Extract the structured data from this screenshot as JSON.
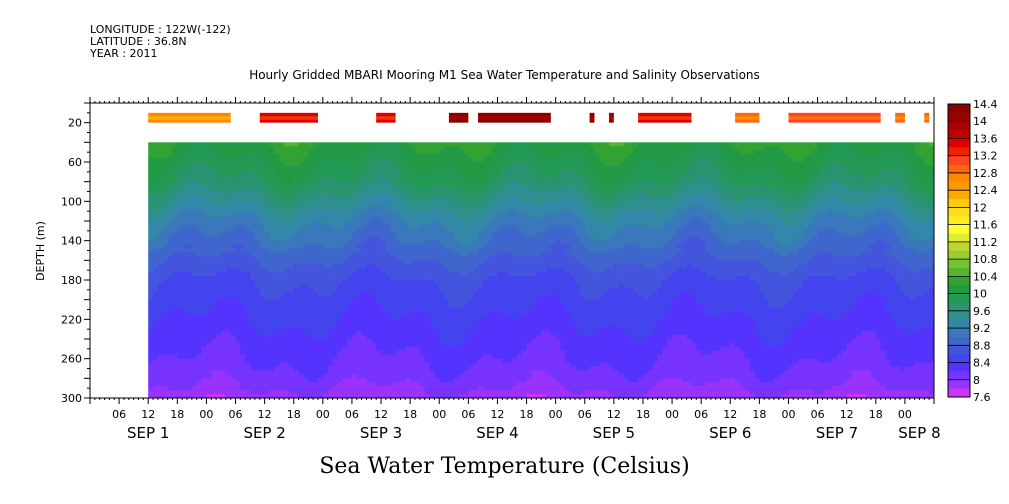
{
  "header": {
    "longitude": "LONGITUDE : 122W(-122)",
    "latitude": "LATITUDE : 36.8N",
    "year": "YEAR : 2011"
  },
  "chart_data": {
    "type": "heatmap",
    "title": "Hourly Gridded MBARI Mooring M1 Sea Water Temperature and Salinity Observations",
    "xlabel": "Sea Water Temperature (Celsius)",
    "ylabel": "DEPTH (m)",
    "x_range_hours": [
      0,
      174
    ],
    "x_start": "SEP 1 00",
    "y_range": [
      0,
      300
    ],
    "y_reversed": true,
    "y_ticks": [
      20,
      60,
      100,
      140,
      180,
      220,
      260,
      300
    ],
    "x_hour_ticks": [
      {
        "label": "06",
        "hour": 6
      },
      {
        "label": "12",
        "hour": 12
      },
      {
        "label": "18",
        "hour": 18
      },
      {
        "label": "00",
        "hour": 24
      },
      {
        "label": "06",
        "hour": 30
      },
      {
        "label": "12",
        "hour": 36
      },
      {
        "label": "18",
        "hour": 42
      },
      {
        "label": "00",
        "hour": 48
      },
      {
        "label": "06",
        "hour": 54
      },
      {
        "label": "12",
        "hour": 60
      },
      {
        "label": "18",
        "hour": 66
      },
      {
        "label": "00",
        "hour": 72
      },
      {
        "label": "06",
        "hour": 78
      },
      {
        "label": "12",
        "hour": 84
      },
      {
        "label": "18",
        "hour": 90
      },
      {
        "label": "00",
        "hour": 96
      },
      {
        "label": "06",
        "hour": 102
      },
      {
        "label": "12",
        "hour": 108
      },
      {
        "label": "18",
        "hour": 114
      },
      {
        "label": "00",
        "hour": 120
      },
      {
        "label": "06",
        "hour": 126
      },
      {
        "label": "12",
        "hour": 132
      },
      {
        "label": "18",
        "hour": 138
      },
      {
        "label": "00",
        "hour": 144
      },
      {
        "label": "06",
        "hour": 150
      },
      {
        "label": "12",
        "hour": 156
      },
      {
        "label": "18",
        "hour": 162
      },
      {
        "label": "00",
        "hour": 168
      }
    ],
    "x_day_labels": [
      {
        "label": "SEP 1",
        "hour": 12
      },
      {
        "label": "SEP 2",
        "hour": 36
      },
      {
        "label": "SEP 3",
        "hour": 60
      },
      {
        "label": "SEP 4",
        "hour": 84
      },
      {
        "label": "SEP 5",
        "hour": 108
      },
      {
        "label": "SEP 6",
        "hour": 132
      },
      {
        "label": "SEP 7",
        "hour": 154
      },
      {
        "label": "SEP 8",
        "hour": 171
      }
    ],
    "colorbar": {
      "labels": [
        "14.4",
        "14",
        "13.6",
        "13.2",
        "12.8",
        "12.4",
        "12",
        "11.6",
        "11.2",
        "10.8",
        "10.4",
        "10",
        "9.6",
        "9.2",
        "8.8",
        "8.4",
        "8",
        "7.6"
      ],
      "levels": [
        7.6,
        7.8,
        8.0,
        8.2,
        8.4,
        8.6,
        8.8,
        9.0,
        9.2,
        9.4,
        9.6,
        9.8,
        10.0,
        10.2,
        10.4,
        10.6,
        10.8,
        11.0,
        11.2,
        11.4,
        11.6,
        11.8,
        12.0,
        12.2,
        12.4,
        12.6,
        12.8,
        13.0,
        13.2,
        13.4,
        13.6,
        13.8,
        14.0,
        14.2,
        14.4
      ],
      "colors": [
        "#cc33ff",
        "#9933ff",
        "#7733ff",
        "#5533ff",
        "#4444ee",
        "#4455dd",
        "#3f66cc",
        "#3a77bb",
        "#3388aa",
        "#2f8f8f",
        "#2a9470",
        "#229955",
        "#229944",
        "#33a233",
        "#55b233",
        "#77c233",
        "#99cc33",
        "#bbd633",
        "#ddee33",
        "#ffff33",
        "#ffee22",
        "#ffdd22",
        "#ffcc11",
        "#ffaa00",
        "#ff9900",
        "#ff8800",
        "#ff6611",
        "#ff4422",
        "#ee2200",
        "#dd0000",
        "#bb0000",
        "#aa0000",
        "#990000",
        "#880000"
      ]
    },
    "data_start_hour": 12,
    "data_top_depth_main": 40,
    "depth_profile": [
      {
        "depth": 40,
        "temp": 10.2
      },
      {
        "depth": 60,
        "temp": 10.0
      },
      {
        "depth": 80,
        "temp": 9.8
      },
      {
        "depth": 100,
        "temp": 9.5
      },
      {
        "depth": 120,
        "temp": 9.2
      },
      {
        "depth": 140,
        "temp": 9.0
      },
      {
        "depth": 160,
        "temp": 8.8
      },
      {
        "depth": 180,
        "temp": 8.6
      },
      {
        "depth": 200,
        "temp": 8.5
      },
      {
        "depth": 220,
        "temp": 8.4
      },
      {
        "depth": 240,
        "temp": 8.3
      },
      {
        "depth": 260,
        "temp": 8.2
      },
      {
        "depth": 280,
        "temp": 8.1
      },
      {
        "depth": 300,
        "temp": 7.9
      }
    ],
    "surface_band": {
      "depth_range": [
        10,
        20
      ],
      "segments": [
        {
          "start": 12,
          "end": 29,
          "temp": 12.6
        },
        {
          "start": 35,
          "end": 47,
          "temp": 13.4
        },
        {
          "start": 59,
          "end": 63,
          "temp": 13.4
        },
        {
          "start": 74,
          "end": 78,
          "temp": 14.2
        },
        {
          "start": 80,
          "end": 95,
          "temp": 14.2
        },
        {
          "start": 103,
          "end": 104,
          "temp": 14.2
        },
        {
          "start": 107,
          "end": 108,
          "temp": 14.0
        },
        {
          "start": 113,
          "end": 124,
          "temp": 13.4
        },
        {
          "start": 133,
          "end": 138,
          "temp": 12.8
        },
        {
          "start": 144,
          "end": 163,
          "temp": 13.0
        },
        {
          "start": 166,
          "end": 168,
          "temp": 12.8
        },
        {
          "start": 172,
          "end": 173,
          "temp": 12.8
        }
      ]
    }
  }
}
